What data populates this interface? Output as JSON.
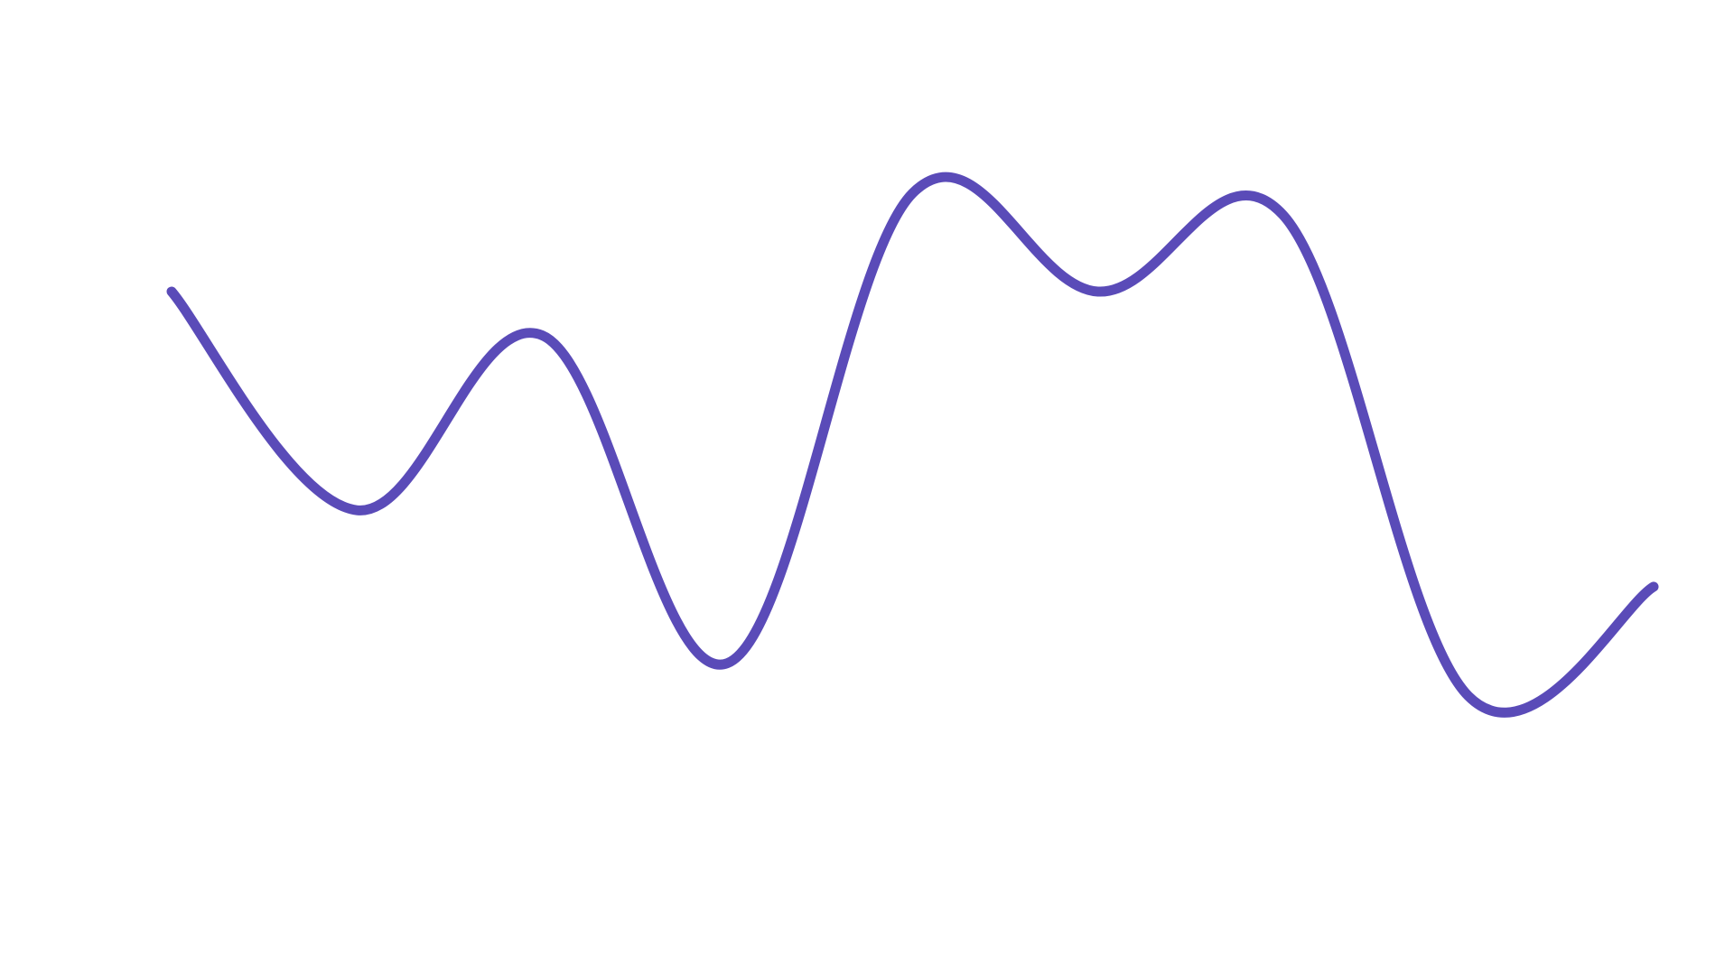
{
  "chart_data": {
    "type": "line",
    "categories": [
      null,
      null,
      null,
      null,
      null,
      null,
      null,
      null,
      null
    ],
    "values": [
      62,
      42,
      58,
      28,
      71,
      62,
      69,
      25,
      35
    ],
    "color": "#5a4bb8"
  }
}
